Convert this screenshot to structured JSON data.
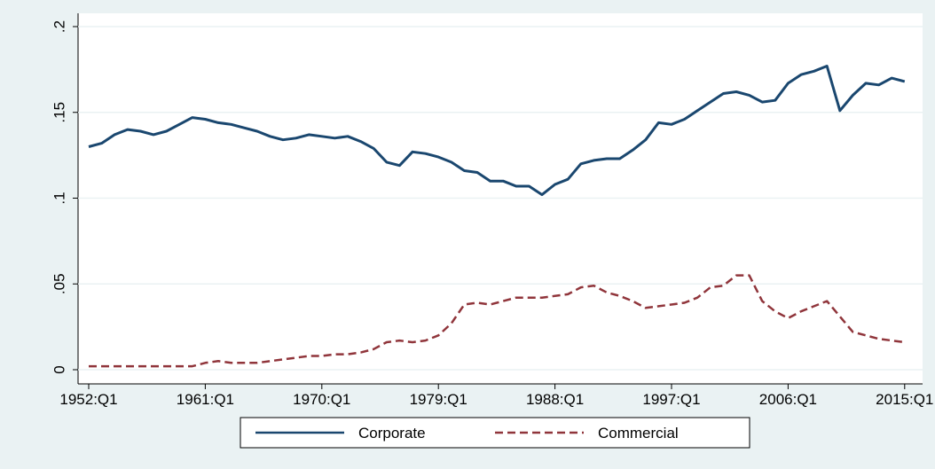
{
  "chart_data": {
    "type": "line",
    "x": [
      "1952:Q1",
      "1953:Q1",
      "1954:Q1",
      "1955:Q1",
      "1956:Q1",
      "1957:Q1",
      "1958:Q1",
      "1959:Q1",
      "1960:Q1",
      "1961:Q1",
      "1962:Q1",
      "1963:Q1",
      "1964:Q1",
      "1965:Q1",
      "1966:Q1",
      "1967:Q1",
      "1968:Q1",
      "1969:Q1",
      "1970:Q1",
      "1971:Q1",
      "1972:Q1",
      "1973:Q1",
      "1974:Q1",
      "1975:Q1",
      "1976:Q1",
      "1977:Q1",
      "1978:Q1",
      "1979:Q1",
      "1980:Q1",
      "1981:Q1",
      "1982:Q1",
      "1983:Q1",
      "1984:Q1",
      "1985:Q1",
      "1986:Q1",
      "1987:Q1",
      "1988:Q1",
      "1989:Q1",
      "1990:Q1",
      "1991:Q1",
      "1992:Q1",
      "1993:Q1",
      "1994:Q1",
      "1995:Q1",
      "1996:Q1",
      "1997:Q1",
      "1998:Q1",
      "1999:Q1",
      "2000:Q1",
      "2001:Q1",
      "2002:Q1",
      "2003:Q1",
      "2004:Q1",
      "2005:Q1",
      "2006:Q1",
      "2007:Q1",
      "2008:Q1",
      "2009:Q1",
      "2010:Q1",
      "2011:Q1",
      "2012:Q1",
      "2013:Q1",
      "2014:Q1",
      "2015:Q1"
    ],
    "series": [
      {
        "name": "Corporate",
        "color": "#1a476f",
        "dash": "solid",
        "values": [
          0.13,
          0.132,
          0.137,
          0.14,
          0.139,
          0.137,
          0.139,
          0.143,
          0.147,
          0.146,
          0.144,
          0.143,
          0.141,
          0.139,
          0.136,
          0.134,
          0.135,
          0.137,
          0.136,
          0.135,
          0.136,
          0.133,
          0.129,
          0.121,
          0.119,
          0.127,
          0.126,
          0.124,
          0.121,
          0.116,
          0.115,
          0.11,
          0.11,
          0.107,
          0.107,
          0.102,
          0.108,
          0.111,
          0.12,
          0.122,
          0.123,
          0.123,
          0.128,
          0.134,
          0.144,
          0.143,
          0.146,
          0.151,
          0.156,
          0.161,
          0.162,
          0.16,
          0.156,
          0.157,
          0.167,
          0.172,
          0.174,
          0.177,
          0.151,
          0.16,
          0.167,
          0.166,
          0.17,
          0.168
        ]
      },
      {
        "name": "Commercial",
        "color": "#90353b",
        "dash": "dashed",
        "values": [
          0.002,
          0.002,
          0.002,
          0.002,
          0.002,
          0.002,
          0.002,
          0.002,
          0.002,
          0.004,
          0.005,
          0.004,
          0.004,
          0.004,
          0.005,
          0.006,
          0.007,
          0.008,
          0.008,
          0.009,
          0.009,
          0.01,
          0.012,
          0.016,
          0.017,
          0.016,
          0.017,
          0.02,
          0.027,
          0.038,
          0.039,
          0.038,
          0.04,
          0.042,
          0.042,
          0.042,
          0.043,
          0.044,
          0.048,
          0.049,
          0.045,
          0.043,
          0.04,
          0.036,
          0.037,
          0.038,
          0.039,
          0.042,
          0.048,
          0.049,
          0.055,
          0.055,
          0.04,
          0.034,
          0.03,
          0.034,
          0.037,
          0.04,
          0.031,
          0.022,
          0.02,
          0.018,
          0.017,
          0.016
        ]
      }
    ],
    "xticks": [
      "1952:Q1",
      "1961:Q1",
      "1970:Q1",
      "1979:Q1",
      "1988:Q1",
      "1997:Q1",
      "2006:Q1",
      "2015:Q1"
    ],
    "ylim": [
      -0.006,
      0.2
    ],
    "yticks": [
      0,
      {
        "value": 0.05,
        "label": ".05"
      },
      {
        "value": 0.1,
        "label": ".1"
      },
      {
        "value": 0.15,
        "label": ".15"
      },
      {
        "value": 0.2,
        "label": ".2"
      }
    ],
    "grid": true,
    "legend": "bottom"
  }
}
